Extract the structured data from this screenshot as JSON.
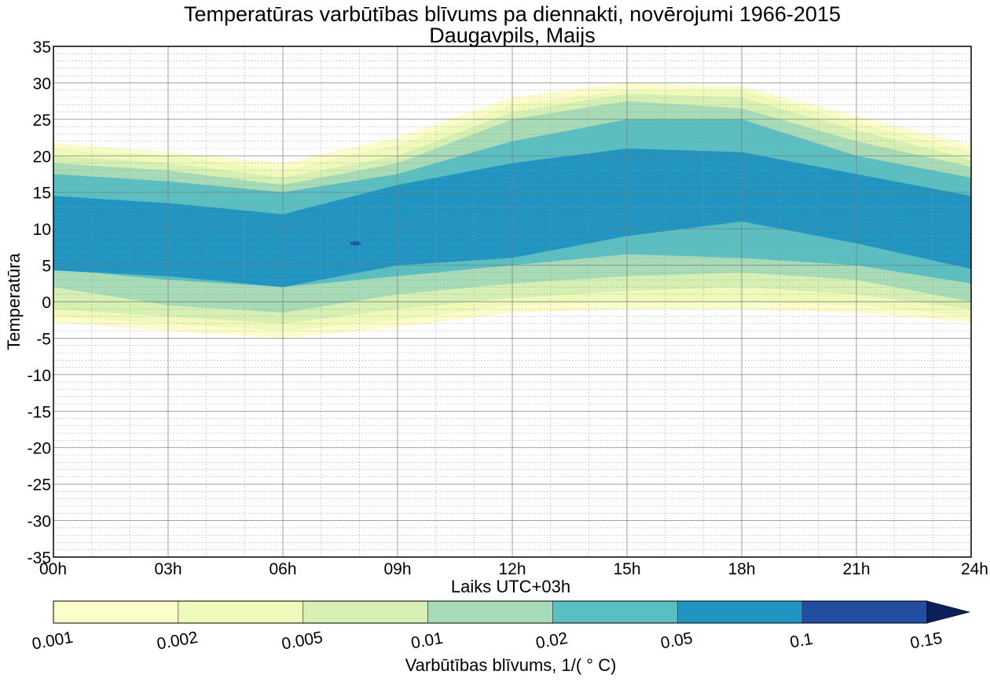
{
  "chart_data": {
    "type": "contourf",
    "title": "Temperatūras varbūtības blīvums pa diennakti, novērojumi 1966-2015",
    "subtitle": "Daugavpils, Maijs",
    "xlabel": "Laiks UTC+03h",
    "ylabel": "Temperatūra",
    "xlim": [
      0,
      24
    ],
    "ylim": [
      -35,
      35
    ],
    "x_ticks": [
      0,
      3,
      6,
      9,
      12,
      15,
      18,
      21,
      24
    ],
    "x_tick_labels": [
      "00h",
      "03h",
      "06h",
      "09h",
      "12h",
      "15h",
      "18h",
      "21h",
      "24h"
    ],
    "x_minor_step": 1,
    "y_ticks": [
      35,
      30,
      25,
      20,
      15,
      10,
      5,
      0,
      -5,
      -10,
      -15,
      -20,
      -25,
      -30,
      -35
    ],
    "y_tick_labels": [
      "35",
      "30",
      "25",
      "20",
      "15",
      "10",
      "5",
      "0",
      "-5",
      "-10",
      "-15",
      "-20",
      "-25",
      "-30",
      "-35"
    ],
    "y_minor_step": 1,
    "grid": true,
    "colorbar": {
      "label": "Varbūtības blīvums, 1/(°C)",
      "label_display": "Varbūtības blīvums, 1/( ° C)",
      "placement": "bottom",
      "levels": [
        0.001,
        0.002,
        0.005,
        0.01,
        0.02,
        0.05,
        0.1,
        0.15
      ],
      "tick_labels": [
        "0.001",
        "0.002",
        "0.005",
        "0.01",
        "0.02",
        "0.05",
        "0.1",
        "0.15"
      ],
      "colors": [
        "#fbfdcb",
        "#eff9ba",
        "#d6efb2",
        "#a7dbb7",
        "#5bbec0",
        "#2195c1",
        "#234da0"
      ],
      "extend_color": "#0c1f5c",
      "extend": "max"
    },
    "hours": [
      0,
      3,
      6,
      9,
      12,
      15,
      18,
      21,
      24
    ],
    "bands": [
      {
        "level": 0.001,
        "upper": [
          21.8,
          20.5,
          19.0,
          22.5,
          28.0,
          30.0,
          29.5,
          25.5,
          21.5
        ],
        "lower": [
          -2.8,
          -4.0,
          -5.0,
          -3.5,
          -1.5,
          -1.0,
          -1.0,
          -1.5,
          -2.8
        ]
      },
      {
        "level": 0.002,
        "upper": [
          21.0,
          20.0,
          18.0,
          21.5,
          27.0,
          29.0,
          29.0,
          24.5,
          20.5
        ],
        "lower": [
          -2.0,
          -3.0,
          -4.0,
          -2.5,
          -0.5,
          0.0,
          0.0,
          -0.5,
          -2.0
        ]
      },
      {
        "level": 0.005,
        "upper": [
          20.0,
          19.0,
          17.0,
          20.0,
          26.0,
          28.5,
          28.0,
          23.5,
          19.5
        ],
        "lower": [
          -1.0,
          -2.0,
          -3.0,
          -1.0,
          0.5,
          1.5,
          2.0,
          1.0,
          -1.0
        ]
      },
      {
        "level": 0.01,
        "upper": [
          19.0,
          18.0,
          16.0,
          19.0,
          25.0,
          27.5,
          26.5,
          22.0,
          18.5
        ],
        "lower": [
          2.0,
          -0.5,
          -1.5,
          1.0,
          2.5,
          3.5,
          4.0,
          3.0,
          0.0
        ]
      },
      {
        "level": 0.02,
        "upper": [
          17.5,
          16.5,
          15.0,
          17.5,
          22.0,
          25.0,
          25.0,
          20.0,
          17.0
        ],
        "lower": [
          4.5,
          3.0,
          2.0,
          3.5,
          5.0,
          6.5,
          6.0,
          5.0,
          2.5
        ]
      },
      {
        "level": 0.05,
        "upper": [
          14.5,
          13.5,
          12.0,
          16.0,
          19.0,
          21.0,
          20.5,
          17.5,
          14.5
        ],
        "lower": [
          4.3,
          3.5,
          2.0,
          5.0,
          6.0,
          9.0,
          11.0,
          8.0,
          4.5
        ]
      }
    ],
    "peak_spots": [
      {
        "level": 0.1,
        "hour": 7.9,
        "temp": 8.0
      }
    ]
  }
}
